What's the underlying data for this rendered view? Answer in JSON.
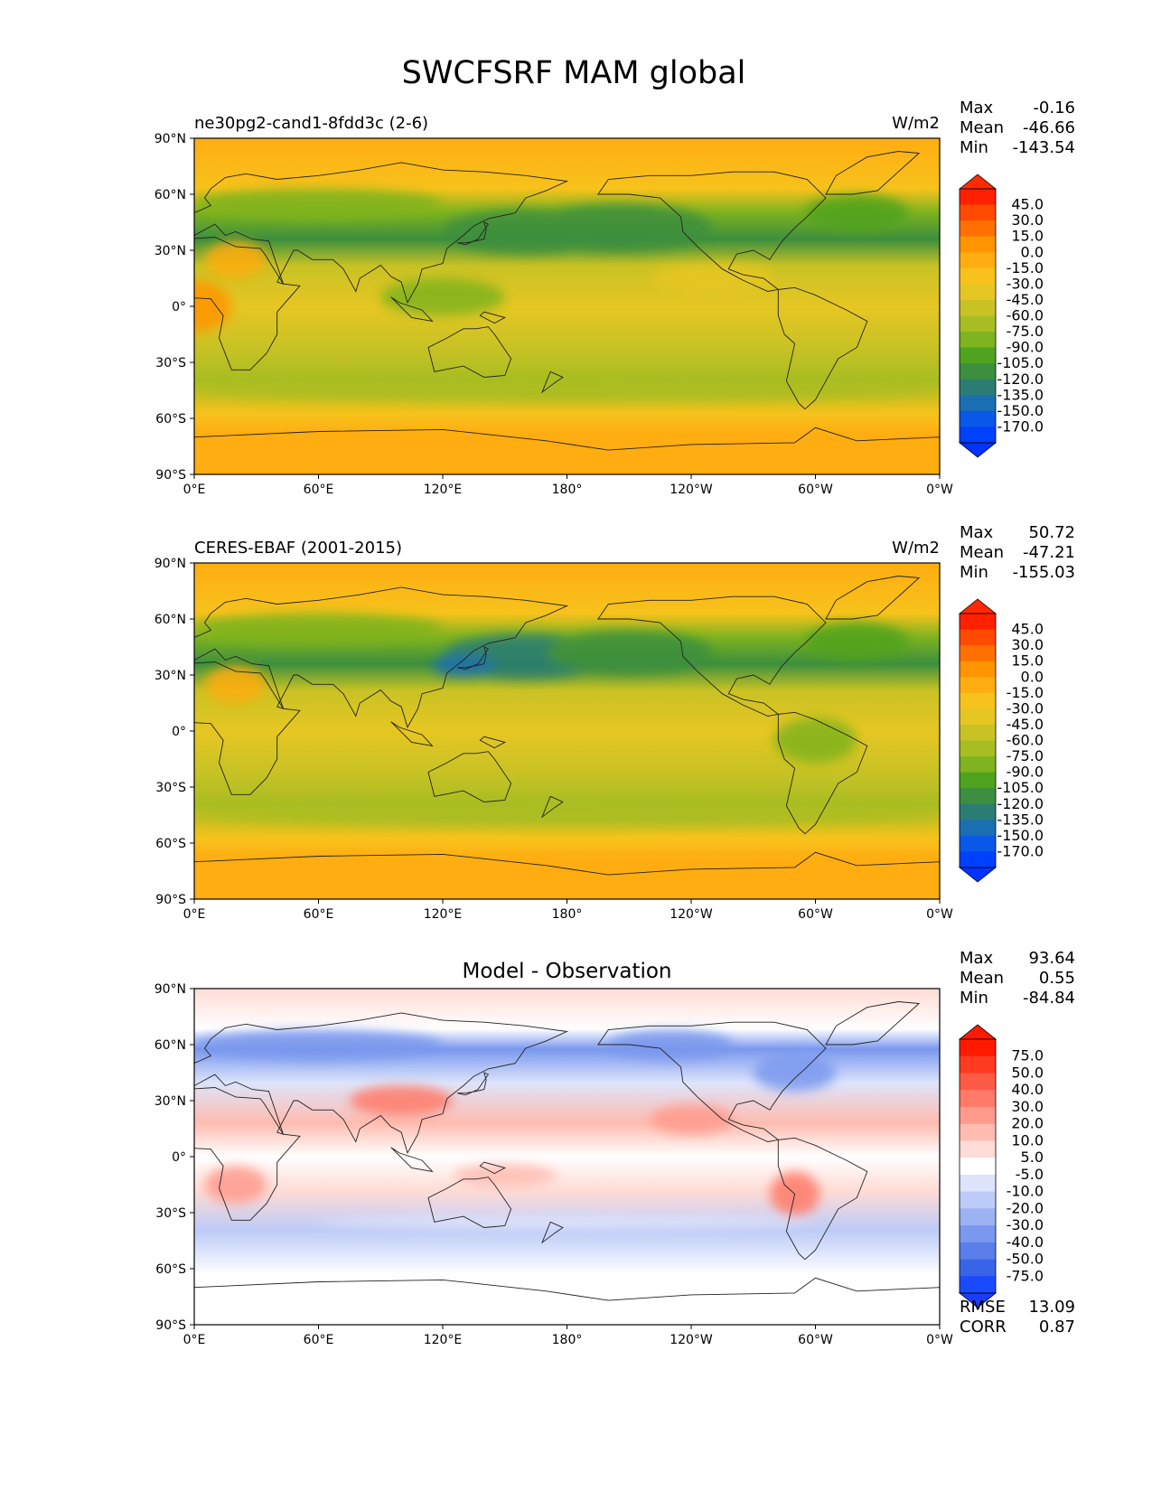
{
  "figure": {
    "title": "SWCFSRF MAM global"
  },
  "x_ticks": [
    "0°E",
    "60°E",
    "120°E",
    "180°",
    "120°W",
    "60°W",
    "0°W"
  ],
  "y_ticks": [
    "90°N",
    "60°N",
    "30°N",
    "0°",
    "30°S",
    "60°S",
    "90°S"
  ],
  "panels": [
    {
      "title_left": "ne30pg2-cand1-8fdd3c (2-6)",
      "title_center": "",
      "units": "W/m2",
      "stats": [
        [
          "Max",
          "-0.16"
        ],
        [
          "Mean",
          "-46.66"
        ],
        [
          "Min",
          "-143.54"
        ]
      ],
      "colorbar_labels": [
        "45.0",
        "30.0",
        "15.0",
        "0.0",
        "-15.0",
        "-30.0",
        "-45.0",
        "-60.0",
        "-75.0",
        "-90.0",
        "-105.0",
        "-120.0",
        "-135.0",
        "-150.0",
        "-170.0"
      ],
      "colorbar_colors": [
        "#ff2000",
        "#ff4a00",
        "#ff7000",
        "#ff9500",
        "#ffad10",
        "#f7c21c",
        "#e6c623",
        "#c9c224",
        "#a8bd22",
        "#7fb31f",
        "#4fa31f",
        "#3c8f3e",
        "#2b7d73",
        "#1a6fb3",
        "#0a58e8",
        "#0040ff"
      ],
      "extend_max_color": "#ff2a00",
      "extend_min_color": "#0033ff"
    },
    {
      "title_left": "CERES-EBAF (2001-2015)",
      "title_center": "",
      "units": "W/m2",
      "stats": [
        [
          "Max",
          "50.72"
        ],
        [
          "Mean",
          "-47.21"
        ],
        [
          "Min",
          "-155.03"
        ]
      ],
      "colorbar_labels": [
        "45.0",
        "30.0",
        "15.0",
        "0.0",
        "-15.0",
        "-30.0",
        "-45.0",
        "-60.0",
        "-75.0",
        "-90.0",
        "-105.0",
        "-120.0",
        "-135.0",
        "-150.0",
        "-170.0"
      ],
      "colorbar_colors": [
        "#ff2000",
        "#ff4a00",
        "#ff7000",
        "#ff9500",
        "#ffad10",
        "#f7c21c",
        "#e6c623",
        "#c9c224",
        "#a8bd22",
        "#7fb31f",
        "#4fa31f",
        "#3c8f3e",
        "#2b7d73",
        "#1a6fb3",
        "#0a58e8",
        "#0040ff"
      ],
      "extend_max_color": "#ff2a00",
      "extend_min_color": "#0033ff"
    },
    {
      "title_left": "",
      "title_center": "Model - Observation",
      "units": "",
      "stats": [
        [
          "Max",
          "93.64"
        ],
        [
          "Mean",
          "0.55"
        ],
        [
          "Min",
          "-84.84"
        ]
      ],
      "colorbar_labels": [
        "75.0",
        "50.0",
        "40.0",
        "30.0",
        "20.0",
        "10.0",
        "5.0",
        "-5.0",
        "-10.0",
        "-20.0",
        "-30.0",
        "-40.0",
        "-50.0",
        "-75.0"
      ],
      "colorbar_colors": [
        "#ff1a00",
        "#ff3a20",
        "#ff5a45",
        "#ff7a68",
        "#ff9a8c",
        "#ffbcb0",
        "#ffdcd5",
        "#ffffff",
        "#dde4fb",
        "#bccbf7",
        "#9bb2f3",
        "#7a98ee",
        "#5a7eea",
        "#3a64e6",
        "#1a4aff"
      ],
      "extend_max_color": "#ff1a00",
      "extend_min_color": "#1a3cff",
      "extra_stats": [
        [
          "RMSE",
          "13.09"
        ],
        [
          "CORR",
          "0.87"
        ]
      ]
    }
  ]
}
